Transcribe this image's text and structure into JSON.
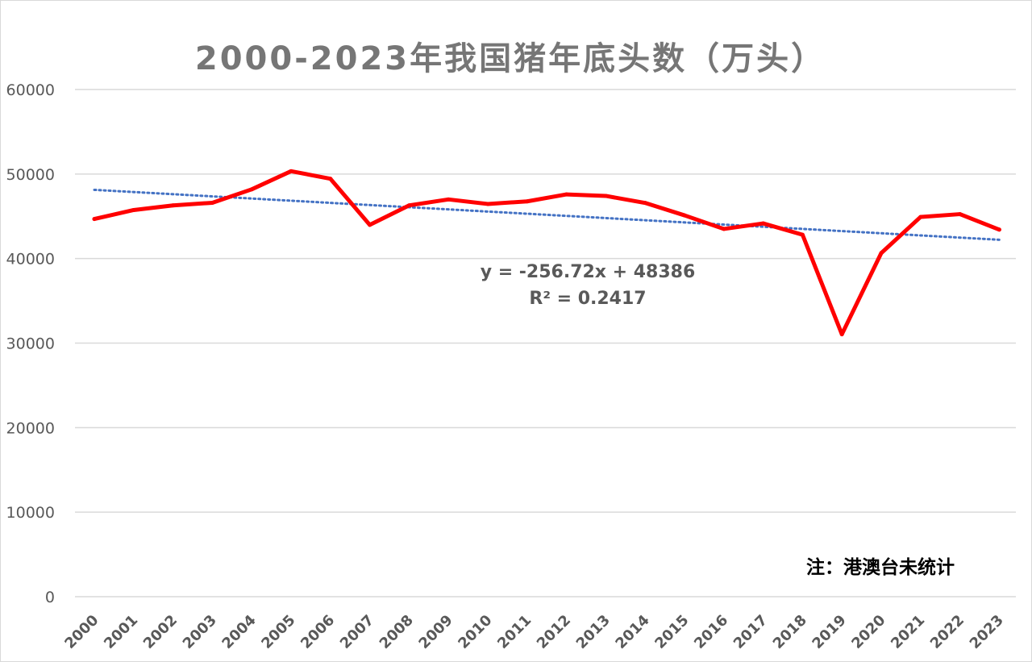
{
  "chart_data": {
    "type": "line",
    "title": "2000-2023年我国猪年底头数（万头）",
    "categories": [
      "2000",
      "2001",
      "2002",
      "2003",
      "2004",
      "2005",
      "2006",
      "2007",
      "2008",
      "2009",
      "2010",
      "2011",
      "2012",
      "2013",
      "2014",
      "2015",
      "2016",
      "2017",
      "2018",
      "2019",
      "2020",
      "2021",
      "2022",
      "2023"
    ],
    "series": [
      {
        "values": [
          44682,
          45743,
          46292,
          46602,
          48189,
          50335,
          49441,
          43989,
          46291,
          46996,
          46460,
          46767,
          47592,
          47411,
          46583,
          45113,
          43504,
          44159,
          42817,
          31041,
          40650,
          44922,
          45256,
          43422
        ],
        "color": "#ff0000"
      }
    ],
    "trendline": {
      "type": "linear",
      "equation": "y = -256.72x + 48386",
      "r_squared": "R² = 0.2417",
      "slope": -256.72,
      "intercept": 48386,
      "color": "#4472c4",
      "style": "dotted"
    },
    "ylim": [
      0,
      60000
    ],
    "yticks": [
      "0",
      "10000",
      "20000",
      "30000",
      "40000",
      "50000",
      "60000"
    ],
    "grid": true,
    "legend": "none",
    "note": "注：港澳台未统计"
  }
}
